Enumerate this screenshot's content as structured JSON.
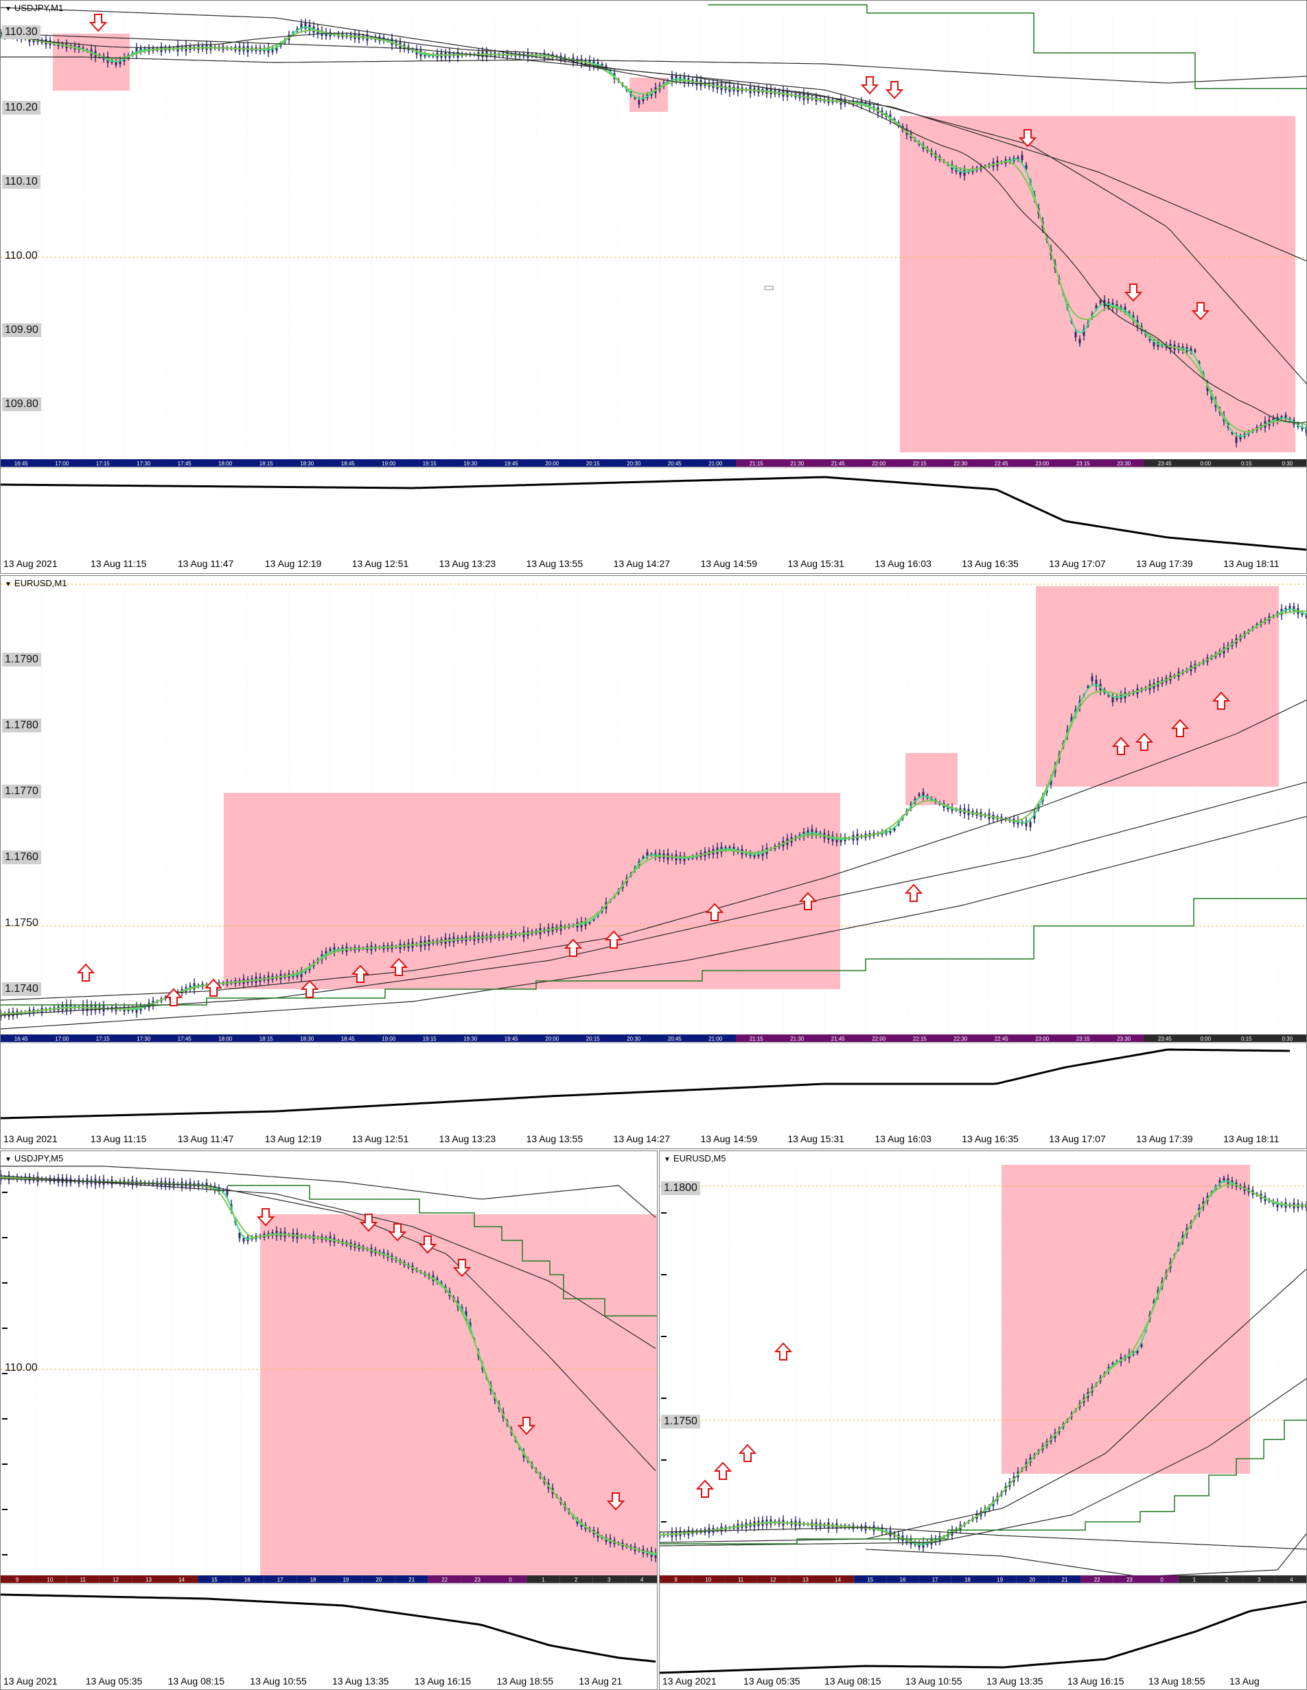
{
  "colors": {
    "highlight": "#ffb6c1",
    "ema_fast": "#3ddc84",
    "ema_slow": "#7ec850",
    "ma_line": "#2b2b2b",
    "stair": "#1f7a1f",
    "candle": "#2a2a6a",
    "arrow": "#e01010",
    "dotted": "#f0b840"
  },
  "charts": {
    "usdjpy_m1": {
      "title": "USDJPY,M1",
      "price_labels": [
        "110.20",
        "110.10",
        "110.00",
        "109.90",
        "109.80"
      ],
      "overlay_label": "110.30",
      "inner_times": [
        "16:45",
        "17:00",
        "17:15",
        "17:30",
        "17:45",
        "18:00",
        "18:15",
        "18:30",
        "18:45",
        "19:00",
        "19:15",
        "19:30",
        "19:45",
        "20:00",
        "20:15",
        "20:30",
        "20:45",
        "21:00",
        "21:15",
        "21:30",
        "21:45",
        "22:00",
        "22:15",
        "22:30",
        "22:45",
        "23:00",
        "23:15",
        "23:30",
        "23:45",
        "0:00",
        "0:15",
        "0:30"
      ],
      "time_axis": [
        "13 Aug 2021",
        "13 Aug 11:15",
        "13 Aug 11:47",
        "13 Aug 12:19",
        "13 Aug 12:51",
        "13 Aug 13:23",
        "13 Aug 13:55",
        "13 Aug 14:27",
        "13 Aug 14:59",
        "13 Aug 15:31",
        "13 Aug 16:03",
        "13 Aug 16:35",
        "13 Aug 17:07",
        "13 Aug 17:39",
        "13 Aug 18:11"
      ]
    },
    "eurusd_m1": {
      "title": "EURUSD,M1",
      "price_labels": [
        "1.1790",
        "1.1780",
        "1.1770",
        "1.1760",
        "1.1750",
        "1.1740"
      ],
      "inner_times": [
        "16:45",
        "17:00",
        "17:15",
        "17:30",
        "17:45",
        "18:00",
        "18:15",
        "18:30",
        "18:45",
        "19:00",
        "19:15",
        "19:30",
        "19:45",
        "20:00",
        "20:15",
        "20:30",
        "20:45",
        "21:00",
        "21:15",
        "21:30",
        "21:45",
        "22:00",
        "22:15",
        "22:30",
        "22:45",
        "23:00",
        "23:15",
        "23:30",
        "23:45",
        "0:00",
        "0:15",
        "0:30"
      ],
      "time_axis": [
        "13 Aug 2021",
        "13 Aug 11:15",
        "13 Aug 11:47",
        "13 Aug 12:19",
        "13 Aug 12:51",
        "13 Aug 13:23",
        "13 Aug 13:55",
        "13 Aug 14:27",
        "13 Aug 14:59",
        "13 Aug 15:31",
        "13 Aug 16:03",
        "13 Aug 16:35",
        "13 Aug 17:07",
        "13 Aug 17:39",
        "13 Aug 18:11"
      ]
    },
    "usdjpy_m5": {
      "title": "USDJPY,M5",
      "price_labels": [
        "110.00"
      ],
      "inner_hours": [
        "9",
        "10",
        "11",
        "12",
        "13",
        "14",
        "15",
        "16",
        "17",
        "18",
        "19",
        "20",
        "21",
        "22",
        "23",
        "0",
        "1",
        "2",
        "3",
        "4"
      ],
      "time_axis": [
        "13 Aug 2021",
        "13 Aug 05:35",
        "13 Aug 08:15",
        "13 Aug 10:55",
        "13 Aug 13:35",
        "13 Aug 16:15",
        "13 Aug 18:55",
        "13 Aug 21"
      ]
    },
    "eurusd_m5": {
      "title": "EURUSD,M5",
      "price_labels": [
        "1.1800",
        "1.1750"
      ],
      "inner_hours": [
        "9",
        "10",
        "11",
        "12",
        "13",
        "14",
        "15",
        "16",
        "17",
        "18",
        "19",
        "20",
        "21",
        "22",
        "23",
        "0",
        "1",
        "2",
        "3",
        "4"
      ],
      "time_axis": [
        "13 Aug 2021",
        "13 Aug 05:35",
        "13 Aug 08:15",
        "13 Aug 10:55",
        "13 Aug 13:35",
        "13 Aug 16:15",
        "13 Aug 18:55",
        "13 Aug"
      ]
    }
  }
}
